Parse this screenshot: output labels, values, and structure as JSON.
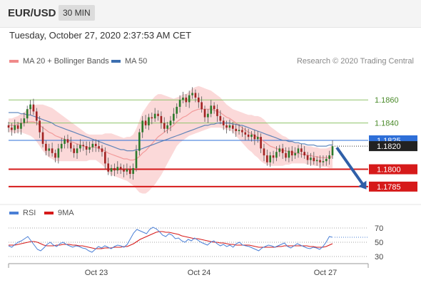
{
  "header": {
    "pair": "EUR/USD",
    "timeframe": "30 MIN"
  },
  "datetime": "Tuesday, October 27, 2020 2:37:53 AM CET",
  "legend": {
    "ma20": "MA 20 + Bollinger Bands",
    "ma50": "MA 50",
    "credit": "Research © 2020 Trading Central"
  },
  "rsi_legend": {
    "rsi": "RSI",
    "ma9": "9MA"
  },
  "colors": {
    "green_level": "#8fc46a",
    "current_price": "#2e6fd8",
    "support": "#d61a1a",
    "arrow": "#2f5fa8",
    "ma20": "#f08a8a",
    "ma50": "#3c6fb0",
    "bollinger": "#fbd9d9",
    "candle_up": "#2b7a2b",
    "candle_down": "#a22222"
  },
  "chart_data": {
    "type": "candlestick",
    "ylim": [
      1.1772,
      1.1886
    ],
    "levels": [
      {
        "label": "1.1860",
        "value": 1.186,
        "kind": "resistance"
      },
      {
        "label": "1.1840",
        "value": 1.184,
        "kind": "resistance"
      },
      {
        "label": "1.1825",
        "value": 1.1825,
        "kind": "current"
      },
      {
        "label": "1.1820",
        "value": 1.182,
        "kind": "last"
      },
      {
        "label": "1.1800",
        "value": 1.18,
        "kind": "support"
      },
      {
        "label": "1.1785",
        "value": 1.1785,
        "kind": "support"
      }
    ],
    "projection": {
      "from": 1.182,
      "to": 1.1785
    },
    "x_ticks": [
      "Oct 23",
      "Oct 24",
      "Oct 27"
    ],
    "closes": [
      1.1836,
      1.1834,
      1.1838,
      1.1835,
      1.184,
      1.1844,
      1.1852,
      1.1856,
      1.185,
      1.1842,
      1.1832,
      1.1822,
      1.1816,
      1.1818,
      1.1814,
      1.181,
      1.1818,
      1.1822,
      1.1826,
      1.1823,
      1.1818,
      1.1814,
      1.1818,
      1.1821,
      1.182,
      1.1817,
      1.1819,
      1.1822,
      1.182,
      1.1818,
      1.1815,
      1.1805,
      1.1798,
      1.1801,
      1.1799,
      1.1802,
      1.18,
      1.1798,
      1.18,
      1.1796,
      1.1801,
      1.1816,
      1.1832,
      1.1842,
      1.1838,
      1.1845,
      1.1844,
      1.1848,
      1.1846,
      1.184,
      1.1835,
      1.1838,
      1.1842,
      1.1848,
      1.1854,
      1.186,
      1.1862,
      1.1858,
      1.1864,
      1.1866,
      1.1862,
      1.1858,
      1.1852,
      1.1845,
      1.1848,
      1.1855,
      1.1852,
      1.1846,
      1.1842,
      1.1838,
      1.1836,
      1.1838,
      1.1835,
      1.1833,
      1.1834,
      1.1832,
      1.183,
      1.1828,
      1.183,
      1.1826,
      1.1828,
      1.1818,
      1.1812,
      1.1806,
      1.1812,
      1.181,
      1.1815,
      1.1818,
      1.1814,
      1.181,
      1.1816,
      1.1812,
      1.1814,
      1.1818,
      1.1815,
      1.1812,
      1.1808,
      1.181,
      1.1807,
      1.1808,
      1.1806,
      1.1807,
      1.1809,
      1.1812,
      1.182
    ],
    "ma20": [
      1.1838,
      1.1838,
      1.1838,
      1.1839,
      1.184,
      1.184,
      1.1841,
      1.1841,
      1.1841,
      1.184,
      1.1838,
      1.1836,
      1.1834,
      1.1832,
      1.1831,
      1.1829,
      1.1828,
      1.1827,
      1.1826,
      1.1825,
      1.1824,
      1.1823,
      1.1822,
      1.1821,
      1.182,
      1.1819,
      1.1819,
      1.1819,
      1.1819,
      1.1818,
      1.1817,
      1.1816,
      1.1814,
      1.1813,
      1.1812,
      1.1811,
      1.181,
      1.1809,
      1.1809,
      1.1808,
      1.1808,
      1.1809,
      1.1811,
      1.1814,
      1.1816,
      1.1819,
      1.1822,
      1.1825,
      1.1828,
      1.183,
      1.1832,
      1.1834,
      1.1836,
      1.1838,
      1.1841,
      1.1843,
      1.1845,
      1.1846,
      1.1848,
      1.185,
      1.1851,
      1.1852,
      1.1852,
      1.1852,
      1.1852,
      1.1852,
      1.1851,
      1.185,
      1.1849,
      1.1847,
      1.1845,
      1.1844,
      1.1842,
      1.184,
      1.1838,
      1.1836,
      1.1834,
      1.1832,
      1.1831,
      1.1829,
      1.1828,
      1.1826,
      1.1824,
      1.1822,
      1.182,
      1.1819,
      1.1818,
      1.1817,
      1.1816,
      1.1816,
      1.1815,
      1.1815,
      1.1814,
      1.1814,
      1.1813,
      1.1813,
      1.1812,
      1.1812,
      1.1811,
      1.1811,
      1.181,
      1.181,
      1.181,
      1.181,
      1.1811
    ],
    "ma50": [
      1.1849,
      1.1849,
      1.1849,
      1.1849,
      1.1848,
      1.1848,
      1.1847,
      1.1847,
      1.1846,
      1.1845,
      1.1844,
      1.1843,
      1.1842,
      1.1841,
      1.184,
      1.1838,
      1.1837,
      1.1836,
      1.1835,
      1.1834,
      1.1833,
      1.1832,
      1.1831,
      1.183,
      1.1829,
      1.1828,
      1.1827,
      1.1826,
      1.1825,
      1.1824,
      1.1823,
      1.1822,
      1.1821,
      1.182,
      1.1819,
      1.1818,
      1.1817,
      1.1817,
      1.1816,
      1.1816,
      1.1816,
      1.1817,
      1.1817,
      1.1818,
      1.1819,
      1.182,
      1.1821,
      1.1822,
      1.1823,
      1.1824,
      1.1825,
      1.1826,
      1.1827,
      1.1828,
      1.1829,
      1.183,
      1.1831,
      1.1832,
      1.1833,
      1.1834,
      1.1835,
      1.1836,
      1.1837,
      1.1838,
      1.1838,
      1.1839,
      1.1839,
      1.184,
      1.184,
      1.184,
      1.184,
      1.184,
      1.1839,
      1.1839,
      1.1838,
      1.1838,
      1.1837,
      1.1836,
      1.1835,
      1.1834,
      1.1833,
      1.1832,
      1.1831,
      1.183,
      1.1829,
      1.1828,
      1.1827,
      1.1826,
      1.1825,
      1.1825,
      1.1824,
      1.1824,
      1.1823,
      1.1823,
      1.1822,
      1.1822,
      1.1821,
      1.1821,
      1.1821,
      1.182,
      1.182,
      1.182,
      1.182,
      1.1821,
      1.1821
    ],
    "bb_width": [
      0.0006,
      0.0006,
      0.0007,
      0.0007,
      0.0008,
      0.0009,
      0.0011,
      0.0012,
      0.0014,
      0.0016,
      0.0018,
      0.002,
      0.0021,
      0.0022,
      0.0022,
      0.0022,
      0.0021,
      0.002,
      0.0019,
      0.0018,
      0.0017,
      0.0016,
      0.0015,
      0.0014,
      0.0013,
      0.0012,
      0.0011,
      0.0011,
      0.0011,
      0.0012,
      0.0013,
      0.0015,
      0.0017,
      0.0018,
      0.0018,
      0.0018,
      0.0018,
      0.0018,
      0.0019,
      0.002,
      0.0022,
      0.0026,
      0.0031,
      0.0035,
      0.0037,
      0.0038,
      0.0038,
      0.0038,
      0.0037,
      0.0035,
      0.0032,
      0.0029,
      0.0026,
      0.0023,
      0.0021,
      0.002,
      0.002,
      0.0019,
      0.0019,
      0.002,
      0.002,
      0.002,
      0.0019,
      0.0018,
      0.0017,
      0.0016,
      0.0015,
      0.0014,
      0.0013,
      0.0012,
      0.0011,
      0.001,
      0.001,
      0.0011,
      0.0012,
      0.0013,
      0.0014,
      0.0015,
      0.0016,
      0.0017,
      0.0018,
      0.0019,
      0.0019,
      0.0018,
      0.0017,
      0.0016,
      0.0015,
      0.0014,
      0.0013,
      0.0012,
      0.0011,
      0.001,
      0.0009,
      0.0009,
      0.0008,
      0.0008,
      0.0008,
      0.0008,
      0.0008,
      0.0008,
      0.0008,
      0.0008,
      0.0008,
      0.0009,
      0.001
    ],
    "rsi": {
      "ylim": [
        25,
        75
      ],
      "ticks": [
        70,
        50,
        30
      ],
      "rsi": [
        45,
        43,
        47,
        50,
        52,
        55,
        58,
        52,
        46,
        40,
        38,
        42,
        47,
        50,
        46,
        44,
        48,
        50,
        47,
        45,
        43,
        45,
        44,
        42,
        41,
        38,
        36,
        40,
        44,
        42,
        45,
        43,
        41,
        44,
        46,
        45,
        43,
        47,
        55,
        63,
        68,
        66,
        64,
        62,
        68,
        71,
        69,
        65,
        60,
        58,
        62,
        60,
        55,
        56,
        52,
        50,
        54,
        52,
        56,
        53,
        50,
        48,
        46,
        50,
        52,
        48,
        45,
        47,
        44,
        46,
        43,
        48,
        50,
        46,
        45,
        44,
        42,
        40,
        38,
        42,
        44,
        46,
        45,
        43,
        45,
        47,
        49,
        44,
        42,
        45,
        48,
        46,
        44,
        42,
        41,
        43,
        42,
        40,
        44,
        50,
        58,
        57
      ],
      "ma9": [
        46,
        46,
        46,
        47,
        48,
        49,
        50,
        51,
        51,
        50,
        48,
        46,
        45,
        45,
        45,
        46,
        46,
        47,
        47,
        47,
        46,
        46,
        45,
        45,
        44,
        43,
        42,
        41,
        41,
        41,
        42,
        42,
        42,
        43,
        43,
        43,
        44,
        44,
        46,
        48,
        51,
        54,
        56,
        58,
        60,
        62,
        64,
        65,
        65,
        64,
        64,
        63,
        62,
        61,
        59,
        58,
        57,
        56,
        55,
        55,
        54,
        53,
        52,
        51,
        50,
        50,
        49,
        49,
        48,
        47,
        47,
        46,
        46,
        46,
        46,
        46,
        45,
        44,
        43,
        43,
        43,
        43,
        43,
        43,
        44,
        44,
        45,
        45,
        45,
        45,
        45,
        45,
        45,
        45,
        44,
        44,
        43,
        43,
        43,
        44,
        46,
        48
      ],
      "last": 57
    }
  }
}
